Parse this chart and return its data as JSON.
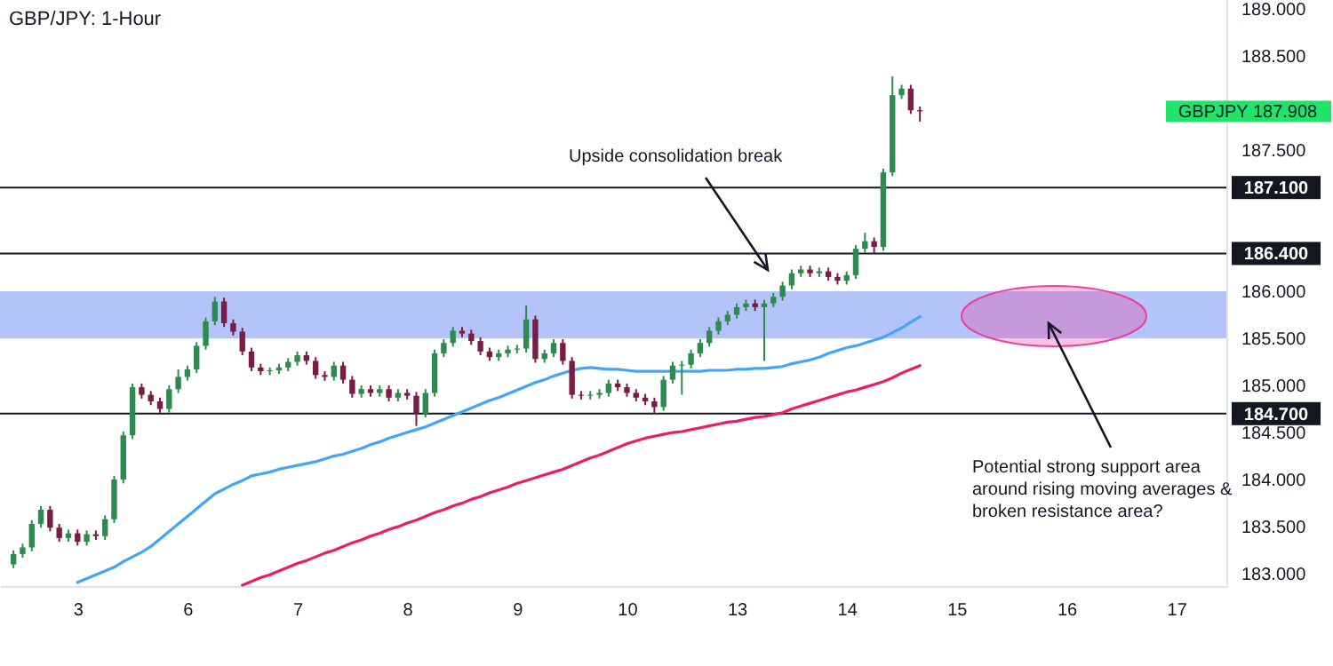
{
  "chart_data": {
    "type": "candlestick",
    "title": "GBP/JPY: 1-Hour",
    "categories": [
      null,
      null,
      null,
      null,
      null,
      null,
      null,
      "3",
      null,
      null,
      null,
      null,
      null,
      null,
      null,
      null,
      null,
      null,
      null,
      "6",
      null,
      null,
      null,
      null,
      null,
      null,
      null,
      null,
      null,
      null,
      null,
      "7",
      null,
      null,
      null,
      null,
      null,
      null,
      null,
      null,
      null,
      null,
      null,
      "8",
      null,
      null,
      null,
      null,
      null,
      null,
      null,
      null,
      null,
      null,
      null,
      "9",
      null,
      null,
      null,
      null,
      null,
      null,
      null,
      null,
      null,
      null,
      null,
      "10",
      null,
      null,
      null,
      null,
      null,
      null,
      null,
      null,
      null,
      null,
      null,
      "13",
      null,
      null,
      null,
      null,
      null,
      null,
      null,
      null,
      null,
      null,
      null,
      "14",
      null,
      null,
      null,
      null,
      null,
      null,
      null,
      null,
      null,
      null,
      null,
      "15",
      null,
      null,
      null,
      null,
      null,
      null,
      null,
      null,
      null,
      null,
      null,
      "16",
      null,
      null,
      null,
      null,
      null,
      null,
      null,
      null,
      null,
      null,
      null,
      "17",
      null,
      null,
      null,
      null
    ],
    "ohlc": [
      [
        183.1,
        183.25,
        183.06,
        183.21
      ],
      [
        183.21,
        183.32,
        183.17,
        183.28
      ],
      [
        183.28,
        183.57,
        183.24,
        183.53
      ],
      [
        183.53,
        183.72,
        183.49,
        183.68
      ],
      [
        183.68,
        183.72,
        183.45,
        183.49
      ],
      [
        183.49,
        183.53,
        183.34,
        183.38
      ],
      [
        183.38,
        183.47,
        183.34,
        183.43
      ],
      [
        183.43,
        183.47,
        183.3,
        183.34
      ],
      [
        183.34,
        183.46,
        183.3,
        183.42
      ],
      [
        183.42,
        183.46,
        183.36,
        183.4
      ],
      [
        183.4,
        183.62,
        183.36,
        183.58
      ],
      [
        183.58,
        184.04,
        183.54,
        184.0
      ],
      [
        184.0,
        184.51,
        183.96,
        184.47
      ],
      [
        184.47,
        185.02,
        184.43,
        184.98
      ],
      [
        184.98,
        185.02,
        184.86,
        184.9
      ],
      [
        184.9,
        184.94,
        184.79,
        184.83
      ],
      [
        184.83,
        184.87,
        184.71,
        184.75
      ],
      [
        184.75,
        185.0,
        184.71,
        184.96
      ],
      [
        184.96,
        185.17,
        184.92,
        185.09
      ],
      [
        185.09,
        185.21,
        185.05,
        185.17
      ],
      [
        185.17,
        185.46,
        185.13,
        185.42
      ],
      [
        185.42,
        185.72,
        185.38,
        185.68
      ],
      [
        185.68,
        185.94,
        185.64,
        185.89
      ],
      [
        185.89,
        185.93,
        185.62,
        185.66
      ],
      [
        185.66,
        185.7,
        185.53,
        185.57
      ],
      [
        185.57,
        185.61,
        185.32,
        185.36
      ],
      [
        185.36,
        185.4,
        185.15,
        185.19
      ],
      [
        185.19,
        185.23,
        185.11,
        185.15
      ],
      [
        185.15,
        185.19,
        185.11,
        185.16
      ],
      [
        185.16,
        185.23,
        185.12,
        185.19
      ],
      [
        185.19,
        185.29,
        185.15,
        185.25
      ],
      [
        185.25,
        185.36,
        185.21,
        185.32
      ],
      [
        185.32,
        185.36,
        185.22,
        185.26
      ],
      [
        185.26,
        185.3,
        185.07,
        185.11
      ],
      [
        185.11,
        185.15,
        185.05,
        185.09
      ],
      [
        185.09,
        185.25,
        185.05,
        185.21
      ],
      [
        185.21,
        185.25,
        185.02,
        185.06
      ],
      [
        185.06,
        185.1,
        184.87,
        184.91
      ],
      [
        184.91,
        185.0,
        184.87,
        184.96
      ],
      [
        184.96,
        185.0,
        184.88,
        184.92
      ],
      [
        184.92,
        185.0,
        184.88,
        184.96
      ],
      [
        184.96,
        185.0,
        184.83,
        184.87
      ],
      [
        184.87,
        184.96,
        184.83,
        184.92
      ],
      [
        184.92,
        184.96,
        184.85,
        184.89
      ],
      [
        184.89,
        184.93,
        184.57,
        184.7
      ],
      [
        184.7,
        184.96,
        184.66,
        184.92
      ],
      [
        184.92,
        185.38,
        184.88,
        185.34
      ],
      [
        185.34,
        185.49,
        185.3,
        185.45
      ],
      [
        185.45,
        185.62,
        185.41,
        185.58
      ],
      [
        185.58,
        185.62,
        185.51,
        185.55
      ],
      [
        185.55,
        185.59,
        185.43,
        185.47
      ],
      [
        185.47,
        185.51,
        185.32,
        185.36
      ],
      [
        185.36,
        185.4,
        185.26,
        185.3
      ],
      [
        185.3,
        185.38,
        185.26,
        185.34
      ],
      [
        185.34,
        185.42,
        185.3,
        185.38
      ],
      [
        185.38,
        185.43,
        185.34,
        185.39
      ],
      [
        185.39,
        185.85,
        185.35,
        185.7
      ],
      [
        185.7,
        185.74,
        185.24,
        185.28
      ],
      [
        185.28,
        185.38,
        185.24,
        185.34
      ],
      [
        185.34,
        185.49,
        185.3,
        185.45
      ],
      [
        185.45,
        185.49,
        185.22,
        185.26
      ],
      [
        185.26,
        185.3,
        184.86,
        184.9
      ],
      [
        184.9,
        184.94,
        184.85,
        184.89
      ],
      [
        184.89,
        184.94,
        184.85,
        184.9
      ],
      [
        184.9,
        184.96,
        184.86,
        184.92
      ],
      [
        184.92,
        185.06,
        184.88,
        185.02
      ],
      [
        185.02,
        185.06,
        184.94,
        184.98
      ],
      [
        184.98,
        185.02,
        184.88,
        184.92
      ],
      [
        184.92,
        184.96,
        184.83,
        184.87
      ],
      [
        184.87,
        184.91,
        184.79,
        184.83
      ],
      [
        184.83,
        184.87,
        184.7,
        184.77
      ],
      [
        184.77,
        185.1,
        184.73,
        185.06
      ],
      [
        185.06,
        185.25,
        185.02,
        185.21
      ],
      [
        185.21,
        185.26,
        184.9,
        185.22
      ],
      [
        185.22,
        185.38,
        185.18,
        185.34
      ],
      [
        185.34,
        185.49,
        185.3,
        185.45
      ],
      [
        185.45,
        185.62,
        185.41,
        185.58
      ],
      [
        185.58,
        185.72,
        185.54,
        185.68
      ],
      [
        185.68,
        185.79,
        185.64,
        185.75
      ],
      [
        185.75,
        185.87,
        185.71,
        185.83
      ],
      [
        185.83,
        185.91,
        185.79,
        185.87
      ],
      [
        185.87,
        185.91,
        185.79,
        185.83
      ],
      [
        185.83,
        185.91,
        185.26,
        185.87
      ],
      [
        185.87,
        185.98,
        185.83,
        185.94
      ],
      [
        185.94,
        186.1,
        185.9,
        186.06
      ],
      [
        186.06,
        186.23,
        186.02,
        186.19
      ],
      [
        186.19,
        186.27,
        186.15,
        186.23
      ],
      [
        186.23,
        186.27,
        186.15,
        186.19
      ],
      [
        186.19,
        186.25,
        186.15,
        186.21
      ],
      [
        186.21,
        186.25,
        186.11,
        186.15
      ],
      [
        186.15,
        186.19,
        186.07,
        186.11
      ],
      [
        186.11,
        186.21,
        186.07,
        186.17
      ],
      [
        186.17,
        186.49,
        186.13,
        186.45
      ],
      [
        186.45,
        186.62,
        186.41,
        186.53
      ],
      [
        186.53,
        186.57,
        186.4,
        186.47
      ],
      [
        186.47,
        187.3,
        186.43,
        187.26
      ],
      [
        187.26,
        188.28,
        187.22,
        188.08
      ],
      [
        188.08,
        188.19,
        188.04,
        188.15
      ],
      [
        188.15,
        188.19,
        187.88,
        187.92
      ],
      [
        187.92,
        187.96,
        187.8,
        187.908
      ],
      null,
      null,
      null,
      null,
      null,
      null,
      null,
      null,
      null,
      null,
      null,
      null,
      null,
      null,
      null,
      null,
      null,
      null,
      null,
      null,
      null,
      null,
      null,
      null,
      null,
      null,
      null,
      null,
      null,
      null,
      null,
      null
    ],
    "colors": [
      "#2e8b4e",
      "#2e8b4e",
      "#2e8b4e",
      "#2e8b4e",
      "#7a1c45",
      "#7a1c45",
      "#2e8b4e",
      "#7a1c45",
      "#2e8b4e",
      "#7a1c45",
      "#2e8b4e",
      "#2e8b4e",
      "#2e8b4e",
      "#2e8b4e",
      "#7a1c45",
      "#7a1c45",
      "#7a1c45",
      "#2e8b4e",
      "#2e8b4e",
      "#2e8b4e",
      "#2e8b4e",
      "#2e8b4e",
      "#2e8b4e",
      "#7a1c45",
      "#7a1c45",
      "#7a1c45",
      "#7a1c45",
      "#7a1c45",
      "#2e8b4e",
      "#2e8b4e",
      "#2e8b4e",
      "#2e8b4e",
      "#7a1c45",
      "#7a1c45",
      "#7a1c45",
      "#2e8b4e",
      "#7a1c45",
      "#7a1c45",
      "#2e8b4e",
      "#7a1c45",
      "#2e8b4e",
      "#7a1c45",
      "#2e8b4e",
      "#7a1c45",
      "#7a1c45",
      "#2e8b4e",
      "#2e8b4e",
      "#2e8b4e",
      "#2e8b4e",
      "#7a1c45",
      "#7a1c45",
      "#7a1c45",
      "#7a1c45",
      "#2e8b4e",
      "#2e8b4e",
      "#2e8b4e",
      "#2e8b4e",
      "#7a1c45",
      "#2e8b4e",
      "#2e8b4e",
      "#7a1c45",
      "#7a1c45",
      "#7a1c45",
      "#2e8b4e",
      "#2e8b4e",
      "#2e8b4e",
      "#7a1c45",
      "#7a1c45",
      "#7a1c45",
      "#7a1c45",
      "#7a1c45",
      "#2e8b4e",
      "#2e8b4e",
      "#2e8b4e",
      "#2e8b4e",
      "#2e8b4e",
      "#2e8b4e",
      "#2e8b4e",
      "#2e8b4e",
      "#2e8b4e",
      "#2e8b4e",
      "#7a1c45",
      "#2e8b4e",
      "#2e8b4e",
      "#2e8b4e",
      "#2e8b4e",
      "#2e8b4e",
      "#7a1c45",
      "#2e8b4e",
      "#7a1c45",
      "#7a1c45",
      "#2e8b4e",
      "#2e8b4e",
      "#2e8b4e",
      "#7a1c45",
      "#2e8b4e",
      "#2e8b4e",
      "#2e8b4e",
      "#7a1c45",
      "#7a1c45",
      null,
      null,
      null,
      null,
      null,
      null,
      null,
      null,
      null,
      null,
      null,
      null,
      null,
      null,
      null,
      null,
      null,
      null,
      null,
      null,
      null,
      null,
      null,
      null,
      null,
      null,
      null,
      null,
      null,
      null,
      null,
      null
    ],
    "series": [
      {
        "type": "line",
        "color": "#42a5f5",
        "values": [
          null,
          null,
          null,
          null,
          null,
          null,
          null,
          182.91,
          182.95,
          182.99,
          183.03,
          183.07,
          183.13,
          183.18,
          183.23,
          183.29,
          183.37,
          183.45,
          183.53,
          183.61,
          183.69,
          183.77,
          183.85,
          183.9,
          183.95,
          183.99,
          184.04,
          184.06,
          184.08,
          184.11,
          184.13,
          184.15,
          184.17,
          184.19,
          184.22,
          184.25,
          184.27,
          184.3,
          184.33,
          184.37,
          184.4,
          184.44,
          184.47,
          184.5,
          184.53,
          184.56,
          184.6,
          184.64,
          184.68,
          184.72,
          184.76,
          184.8,
          184.84,
          184.87,
          184.91,
          184.95,
          184.99,
          185.03,
          185.06,
          185.1,
          185.13,
          185.16,
          185.18,
          185.19,
          185.18,
          185.17,
          185.17,
          185.16,
          185.15,
          185.15,
          185.15,
          185.15,
          185.15,
          185.15,
          185.15,
          185.15,
          185.16,
          185.16,
          185.16,
          185.17,
          185.17,
          185.18,
          185.18,
          185.19,
          185.2,
          185.23,
          185.25,
          185.27,
          185.3,
          185.34,
          185.37,
          185.4,
          185.42,
          185.45,
          185.48,
          185.51,
          185.56,
          185.61,
          185.67,
          185.73,
          null,
          null,
          null,
          null,
          null,
          null,
          null,
          null,
          null,
          null,
          null,
          null,
          null,
          null,
          null,
          null,
          null,
          null,
          null,
          null,
          null,
          null,
          null,
          null,
          null,
          null,
          null,
          null,
          null,
          null,
          null,
          null
        ]
      },
      {
        "type": "line",
        "color": "#e91e63",
        "values": [
          null,
          null,
          null,
          null,
          null,
          null,
          null,
          null,
          null,
          null,
          null,
          null,
          null,
          null,
          null,
          null,
          null,
          null,
          null,
          null,
          null,
          null,
          null,
          null,
          null,
          182.88,
          182.92,
          182.96,
          182.99,
          183.03,
          183.07,
          183.11,
          183.14,
          183.18,
          183.22,
          183.25,
          183.29,
          183.33,
          183.36,
          183.4,
          183.43,
          183.47,
          183.5,
          183.54,
          183.57,
          183.61,
          183.65,
          183.68,
          183.72,
          183.75,
          183.79,
          183.82,
          183.86,
          183.89,
          183.92,
          183.96,
          183.99,
          184.02,
          184.05,
          184.08,
          184.11,
          184.15,
          184.19,
          184.23,
          184.26,
          184.3,
          184.34,
          184.38,
          184.41,
          184.44,
          184.46,
          184.48,
          184.5,
          184.51,
          184.53,
          184.55,
          184.57,
          184.59,
          184.61,
          184.62,
          184.64,
          184.66,
          184.67,
          184.69,
          184.71,
          184.75,
          184.78,
          184.81,
          184.84,
          184.87,
          184.9,
          184.93,
          184.95,
          184.98,
          185.01,
          185.04,
          185.08,
          185.13,
          185.17,
          185.21,
          null,
          null,
          null,
          null,
          null,
          null,
          null,
          null,
          null,
          null,
          null,
          null,
          null,
          null,
          null,
          null,
          null,
          null,
          null,
          null,
          null,
          null,
          null,
          null,
          null,
          null,
          null,
          null,
          null,
          null,
          null,
          null
        ]
      }
    ],
    "ylim": [
      182.87,
      189.09
    ],
    "yticks": [
      {
        "value": 183,
        "label": "183.000"
      },
      {
        "value": 183.5,
        "label": "183.500"
      },
      {
        "value": 184,
        "label": "184.000"
      },
      {
        "value": 184.5,
        "label": "184.500"
      },
      {
        "value": 185,
        "label": "185.000"
      },
      {
        "value": 185.5,
        "label": "185.500"
      },
      {
        "value": 186,
        "label": "186.000"
      },
      {
        "value": 187.5,
        "label": "187.500"
      },
      {
        "value": 188.5,
        "label": "188.500"
      },
      {
        "value": 189,
        "label": "189.000"
      }
    ],
    "bands": [
      {
        "axis": "y",
        "from": 185.5,
        "to": 186.0,
        "color": "#b4c3fa"
      }
    ],
    "ref_lines": [
      {
        "axis": "y",
        "value": 184.7,
        "label": "184.700",
        "color": "#131722"
      },
      {
        "axis": "y",
        "value": 187.1,
        "label": "187.100",
        "color": "#131722"
      },
      {
        "axis": "y",
        "value": 186.4,
        "label": "186.400",
        "color": "#131722"
      }
    ],
    "annotations": [
      "Upside consolidation break",
      "Potential strong support area around rising moving averages & broken resistance area?",
      "GBPJPY 187.908"
    ]
  }
}
